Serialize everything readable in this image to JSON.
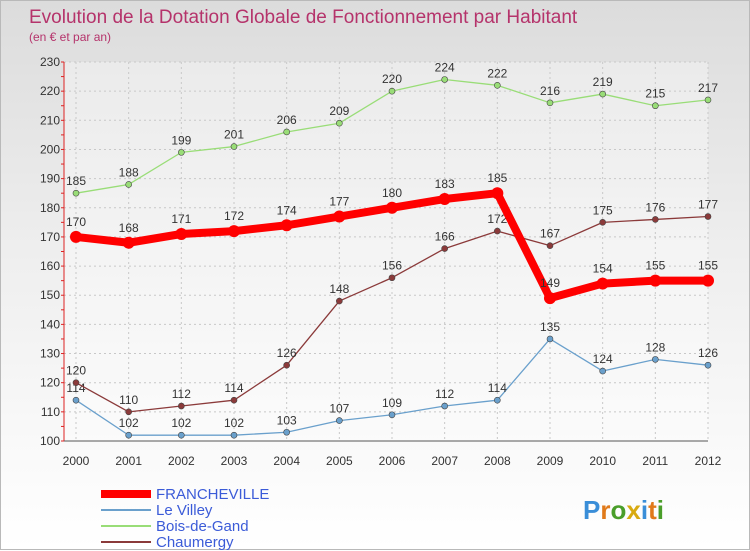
{
  "chart_data": {
    "type": "line",
    "title": "Evolution de la Dotation Globale de Fonctionnement par Habitant",
    "subtitle": "(en € et par an)",
    "xlabel": "",
    "ylabel": "",
    "ylim": [
      100,
      230
    ],
    "yticks": [
      100,
      110,
      120,
      130,
      140,
      150,
      160,
      170,
      180,
      190,
      200,
      210,
      220,
      230
    ],
    "grid": true,
    "legend_position": "bottom-left",
    "categories": [
      "2000",
      "2001",
      "2002",
      "2003",
      "2004",
      "2005",
      "2006",
      "2007",
      "2008",
      "2009",
      "2010",
      "2011",
      "2012"
    ],
    "series": [
      {
        "name": "FRANCHEVILLE",
        "color": "#ff0000",
        "emphasis": true,
        "values": [
          170,
          168,
          171,
          172,
          174,
          177,
          180,
          183,
          185,
          149,
          154,
          155,
          155
        ]
      },
      {
        "name": "Le Villey",
        "color": "#6aa0cc",
        "emphasis": false,
        "values": [
          114,
          102,
          102,
          102,
          103,
          107,
          109,
          112,
          114,
          135,
          124,
          128,
          126
        ]
      },
      {
        "name": "Bois-de-Gand",
        "color": "#99dd77",
        "emphasis": false,
        "values": [
          185,
          188,
          199,
          201,
          206,
          209,
          220,
          224,
          222,
          216,
          219,
          215,
          217
        ]
      },
      {
        "name": "Chaumergy",
        "color": "#8b3a3a",
        "emphasis": false,
        "values": [
          120,
          110,
          112,
          114,
          126,
          148,
          156,
          166,
          172,
          167,
          175,
          176,
          177
        ]
      }
    ]
  },
  "logo": {
    "text": "Proxiti",
    "colors": [
      "#3a8ed8",
      "#e07a1a",
      "#4a9e2a",
      "#d8aa10"
    ]
  }
}
